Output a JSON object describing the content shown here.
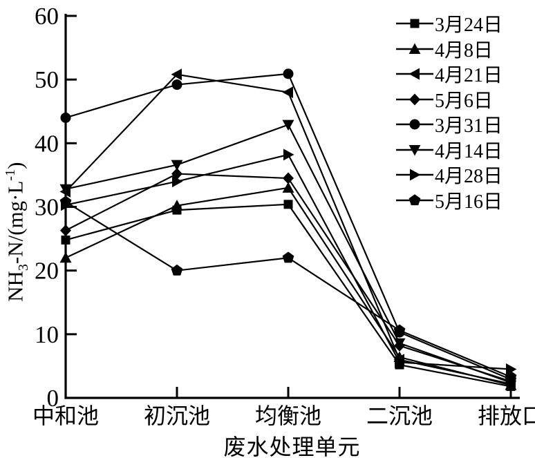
{
  "page": {
    "background": "#ffffff",
    "accent_color": "#000000"
  },
  "chart_data": {
    "type": "line",
    "title": "",
    "xlabel": "废水处理单元",
    "ylabel": "NH3-N/(mg·L-1)",
    "ylabel_parts": {
      "p1": "NH",
      "sub": "3",
      "p2": "-N/(mg·L",
      "sup": "-1",
      "p3": ")"
    },
    "categories": [
      "中和池",
      "初沉池",
      "均衡池",
      "二沉池",
      "排放口"
    ],
    "ylim": [
      0,
      60
    ],
    "yticks": [
      0,
      10,
      20,
      30,
      40,
      50,
      60
    ],
    "grid": false,
    "legend_position": "top-right",
    "line_color": "#000000",
    "marker_color": "#000000",
    "series": [
      {
        "name": "3月24日",
        "marker": "square",
        "values": [
          24.8,
          29.5,
          30.4,
          5.2,
          1.8
        ]
      },
      {
        "name": "4月8日",
        "marker": "triangle-up",
        "values": [
          22.0,
          30.2,
          33.0,
          6.4,
          2.0
        ]
      },
      {
        "name": "4月21日",
        "marker": "triangle-left",
        "values": [
          32.4,
          50.8,
          48.0,
          6.0,
          2.2
        ]
      },
      {
        "name": "5月6日",
        "marker": "diamond",
        "values": [
          26.3,
          35.2,
          34.5,
          8.2,
          2.6
        ]
      },
      {
        "name": "3月31日",
        "marker": "circle",
        "values": [
          44.0,
          49.2,
          50.9,
          10.3,
          2.9
        ]
      },
      {
        "name": "4月14日",
        "marker": "triangle-down",
        "values": [
          32.8,
          36.6,
          42.9,
          8.6,
          2.4
        ]
      },
      {
        "name": "4月28日",
        "marker": "triangle-right",
        "values": [
          30.3,
          34.0,
          38.2,
          5.6,
          4.5
        ]
      },
      {
        "name": "5月16日",
        "marker": "pentagon",
        "values": [
          30.8,
          20.0,
          22.0,
          10.6,
          3.3
        ]
      }
    ]
  }
}
